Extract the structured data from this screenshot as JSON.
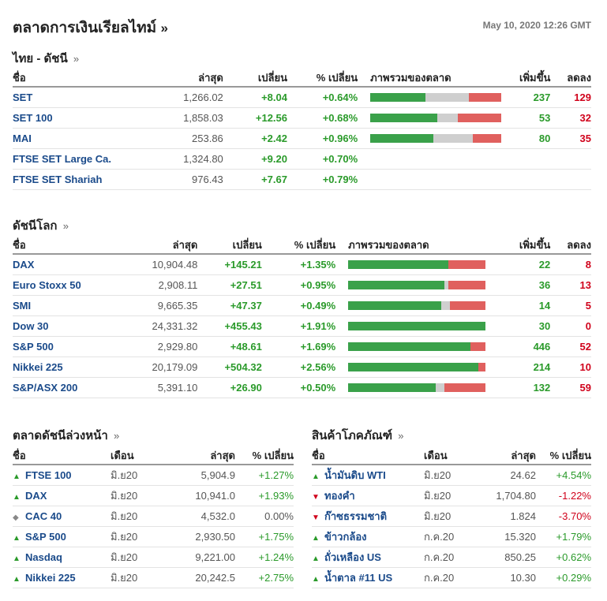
{
  "header": {
    "title": "ตลาดการเงินเรียลไทม์",
    "arrow": "»",
    "datetime": "May 10, 2020 12:26 GMT"
  },
  "thai": {
    "title": "ไทย - ดัชนี",
    "arrow": "»",
    "columns": [
      "ชื่อ",
      "ล่าสุด",
      "เปลี่ยน",
      "% เปลี่ยน",
      "ภาพรวมของตลาด",
      "เพิ่มขึ้น",
      "ลดลง"
    ],
    "rows": [
      {
        "name": "SET",
        "last": "1,266.02",
        "chg": "+8.04",
        "pct": "+0.64%",
        "up": "237",
        "down": "129",
        "bar": [
          0.42,
          0.33,
          0.25
        ]
      },
      {
        "name": "SET 100",
        "last": "1,858.03",
        "chg": "+12.56",
        "pct": "+0.68%",
        "up": "53",
        "down": "32",
        "bar": [
          0.51,
          0.16,
          0.33
        ]
      },
      {
        "name": "MAI",
        "last": "253.86",
        "chg": "+2.42",
        "pct": "+0.96%",
        "up": "80",
        "down": "35",
        "bar": [
          0.48,
          0.3,
          0.22
        ]
      },
      {
        "name": "FTSE SET Large Ca.",
        "last": "1,324.80",
        "chg": "+9.20",
        "pct": "+0.70%",
        "up": "",
        "down": "",
        "bar": null
      },
      {
        "name": "FTSE SET Shariah",
        "last": "976.43",
        "chg": "+7.67",
        "pct": "+0.79%",
        "up": "",
        "down": "",
        "bar": null
      }
    ]
  },
  "world": {
    "title": "ดัชนีโลก",
    "arrow": "»",
    "columns": [
      "ชื่อ",
      "ล่าสุด",
      "เปลี่ยน",
      "% เปลี่ยน",
      "ภาพรวมของตลาด",
      "เพิ่มขึ้น",
      "ลดลง"
    ],
    "rows": [
      {
        "name": "DAX",
        "last": "10,904.48",
        "chg": "+145.21",
        "pct": "+1.35%",
        "up": "22",
        "down": "8",
        "bar": [
          0.73,
          0,
          0.27
        ]
      },
      {
        "name": "Euro Stoxx 50",
        "last": "2,908.11",
        "chg": "+27.51",
        "pct": "+0.95%",
        "up": "36",
        "down": "13",
        "bar": [
          0.7,
          0.03,
          0.27
        ]
      },
      {
        "name": "SMI",
        "last": "9,665.35",
        "chg": "+47.37",
        "pct": "+0.49%",
        "up": "14",
        "down": "5",
        "bar": [
          0.68,
          0.06,
          0.26
        ]
      },
      {
        "name": "Dow 30",
        "last": "24,331.32",
        "chg": "+455.43",
        "pct": "+1.91%",
        "up": "30",
        "down": "0",
        "bar": [
          1.0,
          0,
          0
        ]
      },
      {
        "name": "S&P 500",
        "last": "2,929.80",
        "chg": "+48.61",
        "pct": "+1.69%",
        "up": "446",
        "down": "52",
        "bar": [
          0.89,
          0,
          0.11
        ]
      },
      {
        "name": "Nikkei 225",
        "last": "20,179.09",
        "chg": "+504.32",
        "pct": "+2.56%",
        "up": "214",
        "down": "10",
        "bar": [
          0.95,
          0,
          0.05
        ]
      },
      {
        "name": "S&P/ASX 200",
        "last": "5,391.10",
        "chg": "+26.90",
        "pct": "+0.50%",
        "up": "132",
        "down": "59",
        "bar": [
          0.64,
          0.06,
          0.3
        ]
      }
    ]
  },
  "futures": {
    "title": "ตลาดดัชนีล่วงหน้า",
    "arrow": "»",
    "columns": [
      "ชื่อ",
      "เดือน",
      "ล่าสุด",
      "% เปลี่ยน"
    ],
    "rows": [
      {
        "dir": "up",
        "name": "FTSE 100",
        "month": "มิ.ย20",
        "last": "5,904.9",
        "pct": "+1.27%"
      },
      {
        "dir": "up",
        "name": "DAX",
        "month": "มิ.ย20",
        "last": "10,941.0",
        "pct": "+1.93%"
      },
      {
        "dir": "nc",
        "name": "CAC 40",
        "month": "มิ.ย20",
        "last": "4,532.0",
        "pct": "0.00%"
      },
      {
        "dir": "up",
        "name": "S&P 500",
        "month": "มิ.ย20",
        "last": "2,930.50",
        "pct": "+1.75%"
      },
      {
        "dir": "up",
        "name": "Nasdaq",
        "month": "มิ.ย20",
        "last": "9,221.00",
        "pct": "+1.24%"
      },
      {
        "dir": "up",
        "name": "Nikkei 225",
        "month": "มิ.ย20",
        "last": "20,242.5",
        "pct": "+2.75%"
      }
    ]
  },
  "commodities": {
    "title": "สินค้าโภคภัณฑ์",
    "arrow": "»",
    "columns": [
      "ชื่อ",
      "เดือน",
      "ล่าสุด",
      "% เปลี่ยน"
    ],
    "rows": [
      {
        "dir": "up",
        "name": "น้ำมันดิบ WTI",
        "month": "มิ.ย20",
        "last": "24.62",
        "pct": "+4.54%"
      },
      {
        "dir": "down",
        "name": "ทองคำ",
        "month": "มิ.ย20",
        "last": "1,704.80",
        "pct": "-1.22%"
      },
      {
        "dir": "down",
        "name": "ก๊าซธรรมชาติ",
        "month": "มิ.ย20",
        "last": "1.824",
        "pct": "-3.70%"
      },
      {
        "dir": "up",
        "name": "ข้าวกล้อง",
        "month": "ก.ค.20",
        "last": "15.320",
        "pct": "+1.79%"
      },
      {
        "dir": "up",
        "name": "ถั่วเหลือง US",
        "month": "ก.ค.20",
        "last": "850.25",
        "pct": "+0.62%"
      },
      {
        "dir": "up",
        "name": "น้ำตาล #11 US",
        "month": "ก.ค.20",
        "last": "10.30",
        "pct": "+0.29%"
      }
    ]
  }
}
